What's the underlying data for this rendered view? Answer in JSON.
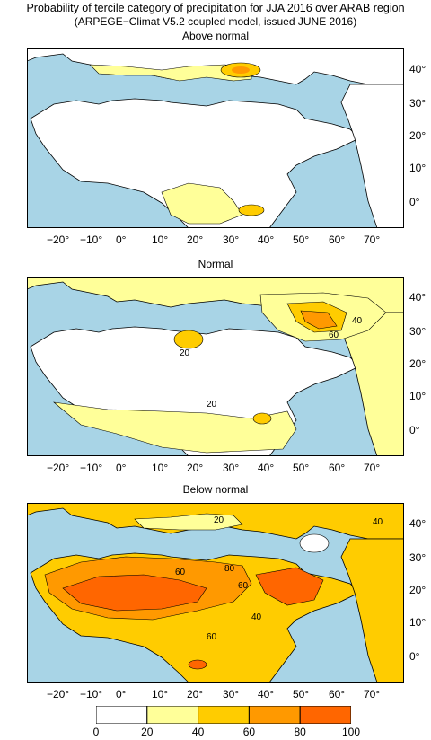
{
  "title": {
    "line1": "Probability of tercile category of precipitation for JJA 2016 over ARAB region",
    "line2": "(ARPEGE−Climat V5.2 coupled model, issued JUNE 2016)"
  },
  "panels": [
    {
      "title": "Above normal",
      "contour_labels": []
    },
    {
      "title": "Normal",
      "contour_labels": [
        "20",
        "20",
        "40",
        "60"
      ]
    },
    {
      "title": "Below normal",
      "contour_labels": [
        "20",
        "40",
        "60",
        "80",
        "60",
        "60",
        "40"
      ]
    }
  ],
  "lon_labels": [
    "−20°",
    "−10°",
    "0°",
    "10°",
    "20°",
    "30°",
    "40°",
    "50°",
    "60°",
    "70°"
  ],
  "lat_labels": [
    "40°",
    "30°",
    "20°",
    "10°",
    "0°"
  ],
  "colorbar": {
    "ticks": [
      "0",
      "20",
      "40",
      "60",
      "80",
      "100"
    ],
    "colors": [
      "#ffffff",
      "#ffff99",
      "#ffcc00",
      "#ff9900",
      "#ff6600"
    ]
  },
  "colors": {
    "ocean": "#a8d4e6",
    "land": "#ffffff",
    "border": "#000000"
  }
}
